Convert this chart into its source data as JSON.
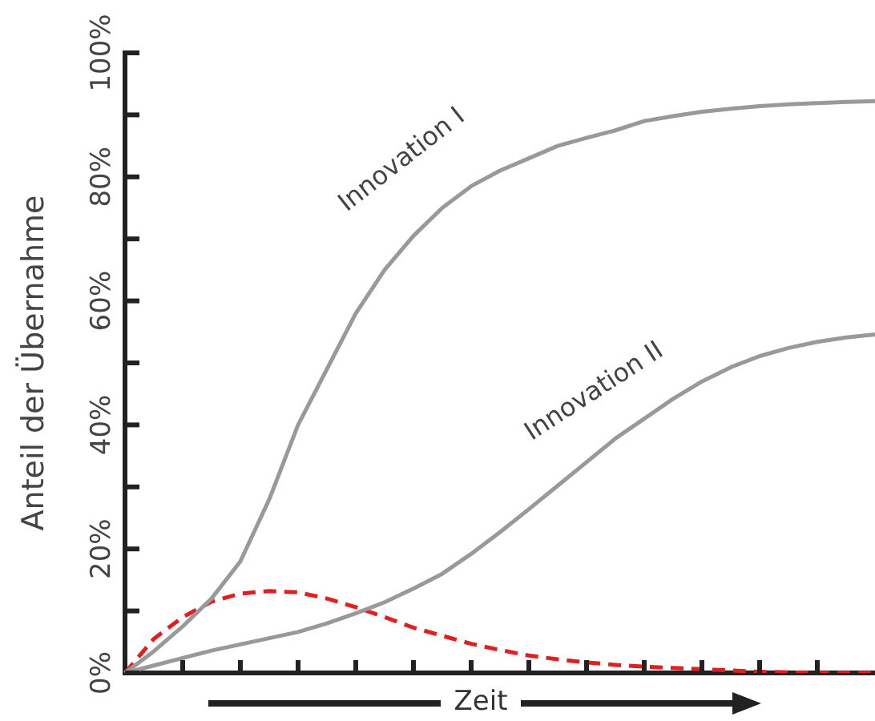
{
  "chart_data": {
    "type": "line",
    "xlabel": "Zeit",
    "ylabel": "Anteil der Übernahme",
    "categories": [
      null,
      null,
      null,
      null,
      null,
      null,
      null,
      null,
      null,
      null,
      null,
      null,
      null,
      null,
      null,
      null,
      null,
      null,
      null,
      null,
      null,
      null,
      null,
      null,
      null,
      null,
      null
    ],
    "ylim": [
      0,
      100
    ],
    "yticks": [
      {
        "value": 0,
        "label": "0%"
      },
      {
        "value": 10,
        "label": null
      },
      {
        "value": 20,
        "label": "20%"
      },
      {
        "value": 30,
        "label": null
      },
      {
        "value": 40,
        "label": "40%"
      },
      {
        "value": 50,
        "label": null
      },
      {
        "value": 60,
        "label": "60%"
      },
      {
        "value": 70,
        "label": null
      },
      {
        "value": 80,
        "label": "80%"
      },
      {
        "value": 90,
        "label": null
      },
      {
        "value": 100,
        "label": "100%"
      }
    ],
    "tick_labels": "y",
    "marker": "none",
    "series": [
      {
        "name": "Innovation I",
        "color": "#999999",
        "line_style": "solid",
        "values": [
          0,
          3.5,
          7.5,
          12,
          18,
          28,
          40,
          49,
          58,
          65,
          70.5,
          75,
          78.5,
          81,
          83,
          85,
          86.3,
          87.5,
          89,
          89.8,
          90.5,
          91,
          91.4,
          91.7,
          91.9,
          92.1,
          92.2
        ]
      },
      {
        "name": "Innovation II",
        "color": "#999999",
        "line_style": "solid",
        "values": [
          0,
          1.2,
          2.4,
          3.6,
          4.6,
          5.6,
          6.6,
          8,
          9.6,
          11.4,
          13.6,
          16,
          19.2,
          22.7,
          26.4,
          30.2,
          34,
          37.8,
          41,
          44.2,
          47,
          49.3,
          51.1,
          52.4,
          53.4,
          54.1,
          54.6
        ]
      },
      {
        "color": "#e02020",
        "line_style": "dashed",
        "values": [
          0,
          5.5,
          9,
          11.5,
          12.8,
          13.2,
          13,
          12,
          10.6,
          9,
          7.3,
          6,
          4.7,
          3.7,
          2.8,
          2.2,
          1.7,
          1.3,
          1,
          0.8,
          0.6,
          0.4,
          0.2,
          0.1,
          0,
          0,
          0
        ]
      }
    ]
  }
}
